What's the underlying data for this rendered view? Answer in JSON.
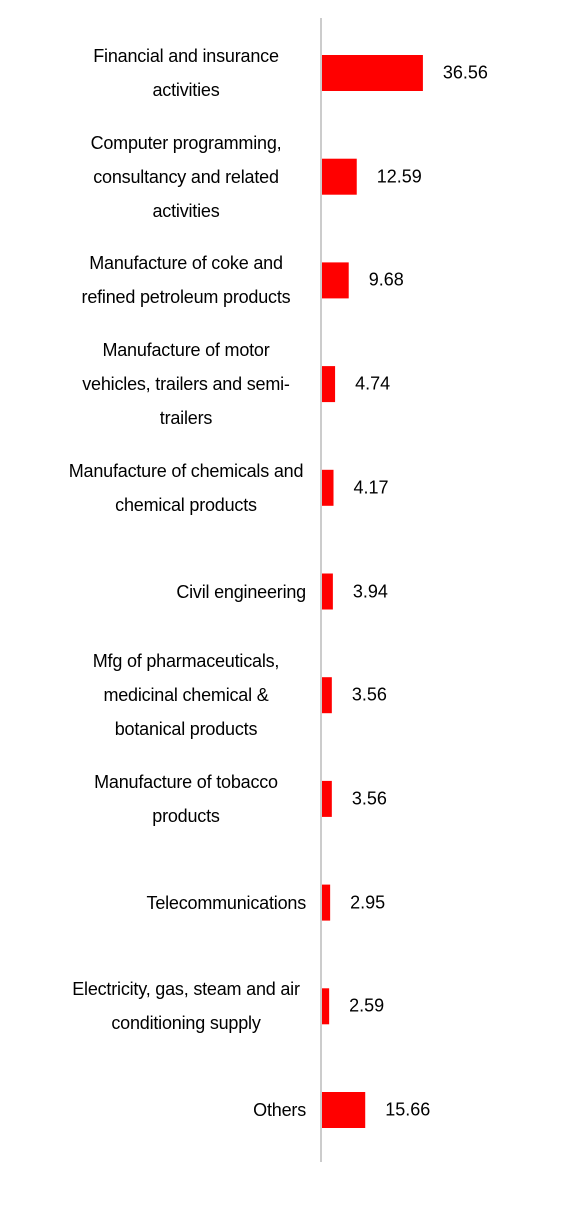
{
  "chart_data": {
    "type": "bar",
    "orientation": "horizontal",
    "categories": [
      "Financial and insurance activities",
      "Computer programming, consultancy and related activities",
      "Manufacture of coke and refined petroleum products",
      "Manufacture of motor vehicles, trailers and semi-trailers",
      "Manufacture of chemicals and chemical products",
      "Civil engineering",
      "Mfg of pharmaceuticals, medicinal chemical & botanical products",
      "Manufacture of tobacco products",
      "Telecommunications",
      "Electricity, gas, steam and air conditioning supply",
      "Others"
    ],
    "values": [
      36.56,
      12.59,
      9.68,
      4.74,
      4.17,
      3.94,
      3.56,
      3.56,
      2.95,
      2.59,
      15.66
    ],
    "color": "#ff0000"
  }
}
